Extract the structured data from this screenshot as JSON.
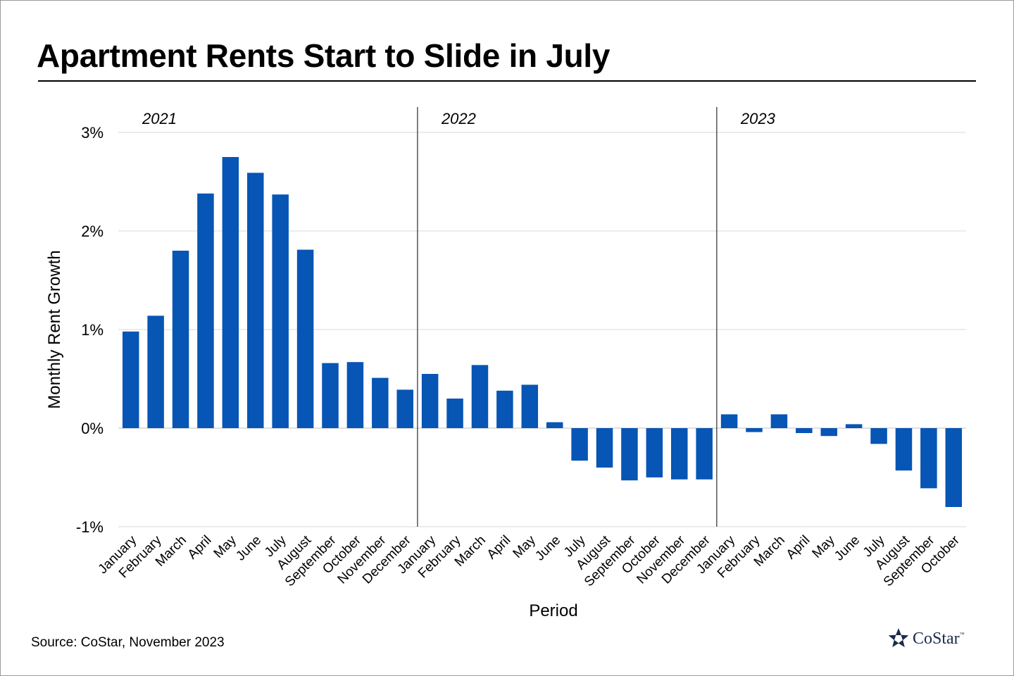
{
  "title": "Apartment Rents Start to Slide in July",
  "source": "Source: CoStar, November 2023",
  "logo": {
    "text": "CoStar",
    "tm": "™"
  },
  "colors": {
    "bar": "#0755b5",
    "grid": "#d9d9d9",
    "text": "#000000"
  },
  "chart_data": {
    "type": "bar",
    "title": "Apartment Rents Start to Slide in July",
    "xlabel": "Period",
    "ylabel": "Monthly Rent Growth",
    "ylim": [
      -1,
      3
    ],
    "yticks": [
      {
        "value": 3,
        "label": "3%"
      },
      {
        "value": 2,
        "label": "2%"
      },
      {
        "value": 1,
        "label": "1%"
      },
      {
        "value": 0,
        "label": "0%"
      },
      {
        "value": -1,
        "label": "-1%"
      }
    ],
    "grid": true,
    "legend": "none",
    "year_groups": [
      {
        "label": "2021",
        "start_index": 0
      },
      {
        "label": "2022",
        "start_index": 12
      },
      {
        "label": "2023",
        "start_index": 24
      }
    ],
    "categories": [
      "January",
      "February",
      "March",
      "April",
      "May",
      "June",
      "July",
      "August",
      "September",
      "October",
      "November",
      "December",
      "January",
      "February",
      "March",
      "April",
      "May",
      "June",
      "July",
      "August",
      "September",
      "October",
      "November",
      "December",
      "January",
      "February",
      "March",
      "April",
      "May",
      "June",
      "July",
      "August",
      "September",
      "October"
    ],
    "values": [
      0.98,
      1.14,
      1.8,
      2.38,
      2.75,
      2.59,
      2.37,
      1.81,
      0.66,
      0.67,
      0.51,
      0.39,
      0.55,
      0.3,
      0.64,
      0.38,
      0.44,
      0.06,
      -0.33,
      -0.4,
      -0.53,
      -0.5,
      -0.52,
      -0.52,
      0.14,
      -0.04,
      0.14,
      -0.05,
      -0.08,
      0.04,
      -0.16,
      -0.43,
      -0.61,
      -0.8
    ]
  }
}
